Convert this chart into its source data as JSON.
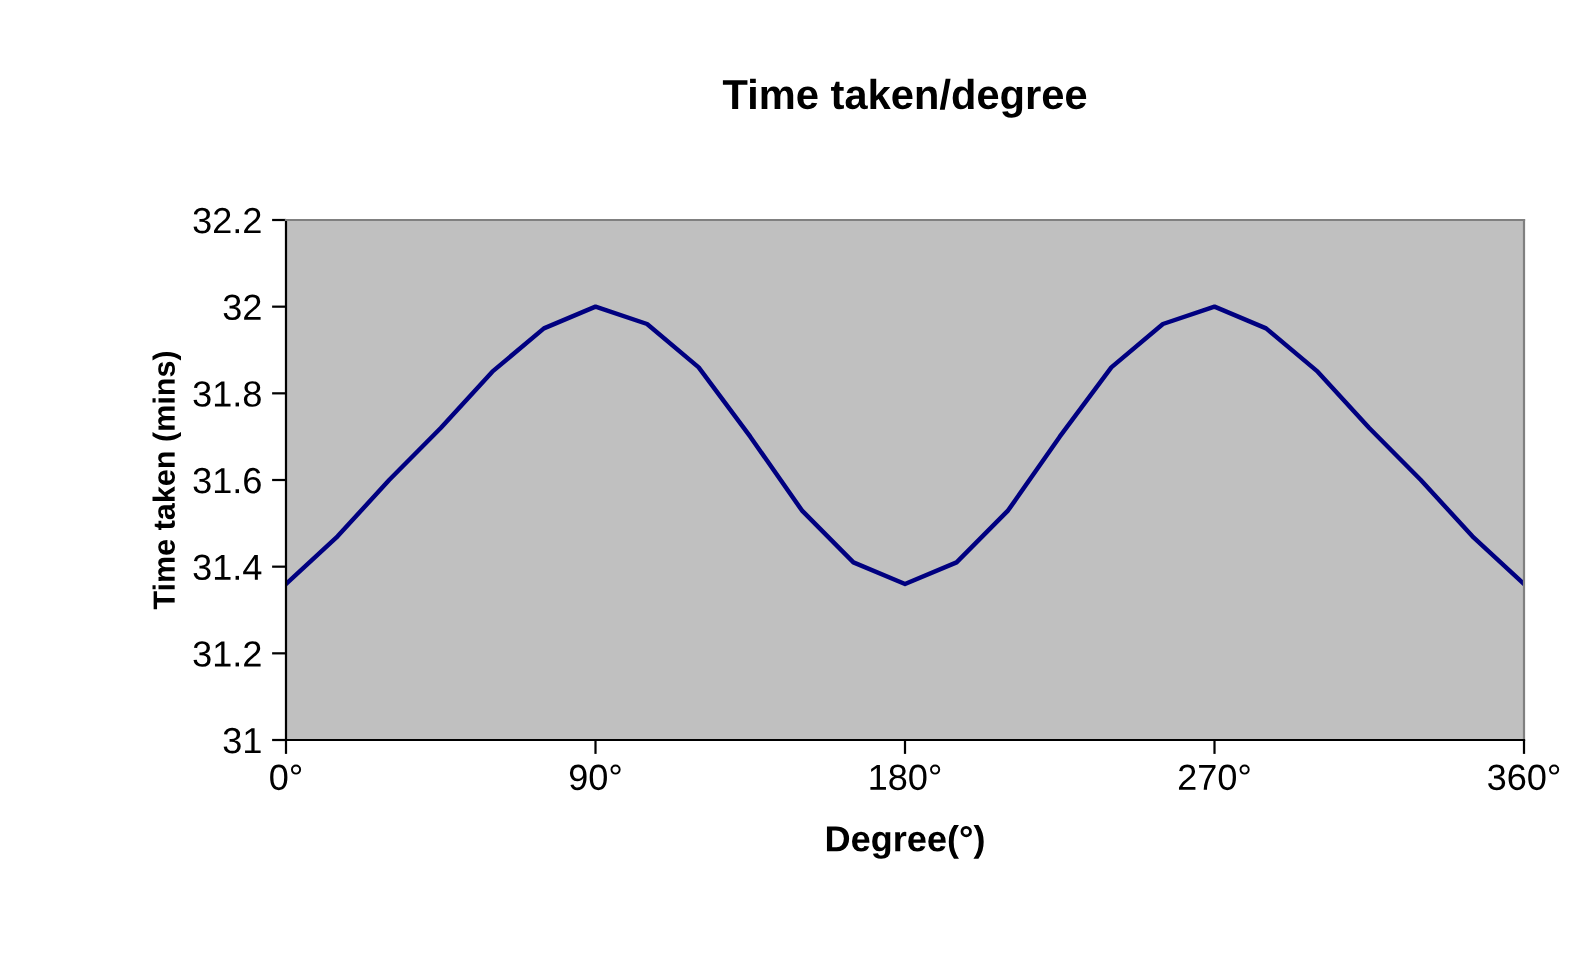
{
  "chart_data": {
    "type": "line",
    "title": "Time taken/degree",
    "xlabel": "Degree(°)",
    "ylabel": "Time taken (mins)",
    "x": [
      0,
      15,
      30,
      45,
      60,
      75,
      90,
      105,
      120,
      135,
      150,
      165,
      180,
      195,
      210,
      225,
      240,
      255,
      270,
      285,
      300,
      315,
      330,
      345,
      360
    ],
    "series": [
      {
        "color": "#000080",
        "values": [
          31.36,
          31.47,
          31.6,
          31.72,
          31.85,
          31.95,
          32.0,
          31.96,
          31.86,
          31.7,
          31.53,
          31.41,
          31.36,
          31.41,
          31.53,
          31.7,
          31.86,
          31.96,
          32.0,
          31.95,
          31.85,
          31.72,
          31.6,
          31.47,
          31.36
        ]
      }
    ],
    "xlim": [
      0,
      360
    ],
    "xticks": [
      {
        "value": 0,
        "label": "0°"
      },
      {
        "value": 90,
        "label": "90°"
      },
      {
        "value": 180,
        "label": "180°"
      },
      {
        "value": 270,
        "label": "270°"
      },
      {
        "value": 360,
        "label": "360°"
      }
    ],
    "ylim": [
      31,
      32.2
    ],
    "yticks": [
      31,
      31.2,
      31.4,
      31.6,
      31.8,
      32,
      32.2
    ],
    "grid": false,
    "legend": false,
    "marker": "none",
    "line_style": "solid"
  }
}
